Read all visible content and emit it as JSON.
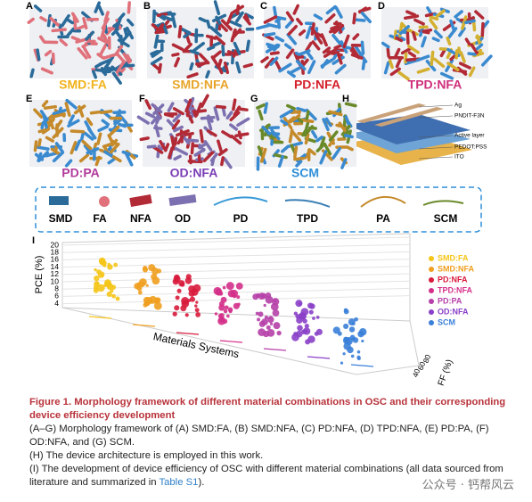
{
  "panels": [
    {
      "letter": "A",
      "label": "SMD:FA",
      "color": "#f2b21a"
    },
    {
      "letter": "B",
      "label": "SMD:NFA",
      "color": "#e8a428"
    },
    {
      "letter": "C",
      "label": "PD:NFA",
      "color": "#d51f2a"
    },
    {
      "letter": "D",
      "label": "TPD:NFA",
      "color": "#cf2f7c"
    },
    {
      "letter": "E",
      "label": "PD:PA",
      "color": "#b23a9c"
    },
    {
      "letter": "F",
      "label": "OD:NFA",
      "color": "#7a3db5"
    },
    {
      "letter": "G",
      "label": "SCM",
      "color": "#2f8fd8"
    }
  ],
  "device": {
    "letter": "H",
    "layers": [
      "Ag",
      "PNDIT-F3N",
      "Active layer",
      "PEDOT:PSS",
      "ITO"
    ]
  },
  "legend_row": {
    "items": [
      "SMD",
      "FA",
      "NFA",
      "OD",
      "PD",
      "TPD",
      "PA",
      "SCM"
    ]
  },
  "chart": {
    "letter": "I",
    "y_label": "PCE (%)",
    "yticks": [
      "20",
      "18",
      "16",
      "14",
      "12",
      "10",
      "8",
      "6",
      "4"
    ],
    "x_label": "Materials Systems",
    "z_label": "FF (%)",
    "zticks": [
      "80",
      "60",
      "40"
    ],
    "legend": [
      {
        "name": "SMD:FA",
        "color": "#f5c518"
      },
      {
        "name": "SMD:NFA",
        "color": "#f0a020"
      },
      {
        "name": "PD:NFA",
        "color": "#d81b3c"
      },
      {
        "name": "TPD:NFA",
        "color": "#d4308a"
      },
      {
        "name": "PD:PA",
        "color": "#b640a8"
      },
      {
        "name": "OD:NFA",
        "color": "#8a40c8"
      },
      {
        "name": "SCM",
        "color": "#3a80d8"
      }
    ]
  },
  "caption": {
    "title": "Figure 1. Morphology framework of different material combinations in OSC and their corresponding device efficiency development",
    "lines": [
      "(A–G) Morphology framework of (A) SMD:FA, (B) SMD:NFA, (C) PD:NFA, (D) TPD:NFA, (E) PD:PA, (F) OD:NFA, and (G) SCM.",
      "(H) The device architecture is employed in this work."
    ],
    "last_line": [
      "(I) The development of device efficiency of OSC with different material combinations (all data sourced from literature and summarized in ",
      "Table S1",
      ")."
    ]
  },
  "watermark": "公众号 · 钙帮风云"
}
